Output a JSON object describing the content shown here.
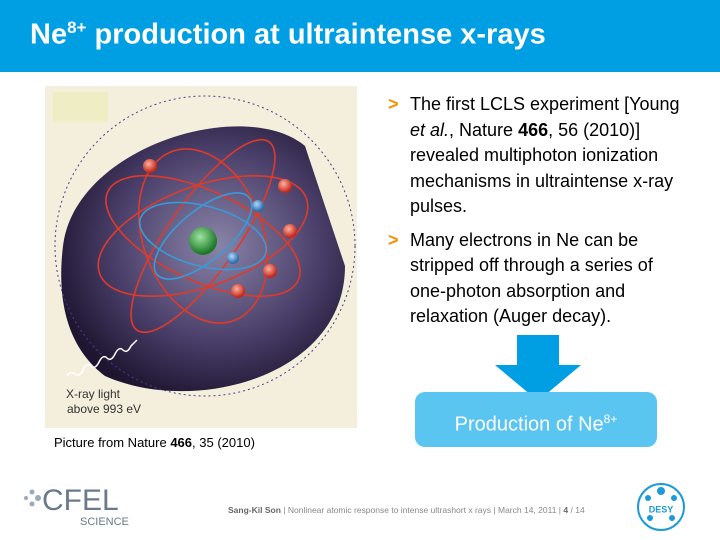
{
  "header": {
    "title": "Ne",
    "title_sup": "8+",
    "title_rest": " production at ultraintense x-rays"
  },
  "figure": {
    "label_lines": [
      "X-ray light",
      "above 993 eV"
    ],
    "caption": [
      {
        "text": "Picture from Nature "
      },
      {
        "text": "466",
        "bold": true
      },
      {
        "text": ", 35 (2010)"
      }
    ]
  },
  "bullets": {
    "marker": ">",
    "items": [
      [
        {
          "text": "The first LCLS experiment [Young "
        },
        {
          "text": "et al.",
          "italic": true
        },
        {
          "text": ", Nature "
        },
        {
          "text": "466",
          "bold": true
        },
        {
          "text": ", 56 (2010)] revealed multiphoton ionization mechanisms in ultraintense x-ray pulses."
        }
      ],
      [
        {
          "text": "Many electrons in Ne can be stripped off through a series of one-photon absorption and relaxation (Auger decay)."
        }
      ]
    ]
  },
  "callout": {
    "text": "Production of Ne",
    "sup": "8+"
  },
  "logos": {
    "cfel": "CFEL",
    "science": "SCIENCE",
    "desy": "DESY"
  },
  "footer": {
    "author": "Sang-Kil Son",
    "separator": "|",
    "talk": "Nonlinear atomic response to intense ultrashort x rays",
    "date": "March 14, 2011",
    "page": "4",
    "total": "/ 14"
  }
}
